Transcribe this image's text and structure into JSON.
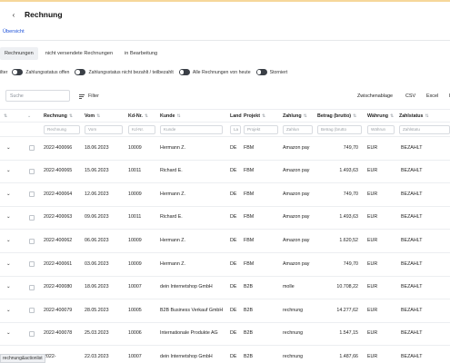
{
  "header": {
    "title": "Rechnung",
    "back_icon": "chevron-left-icon"
  },
  "breadcrumb": {
    "label": "Übersicht"
  },
  "tabs": [
    {
      "label": "Rechnungen",
      "active": true
    },
    {
      "label": "nicht versendete Rechnungen",
      "active": false
    },
    {
      "label": "in Bearbeitung",
      "active": false
    }
  ],
  "filters": {
    "label": "ilter",
    "chips": [
      {
        "label": "Zahlungsstatus offen"
      },
      {
        "label": "Zahlungsstatus nicht bezahlt / teilbezahlt"
      },
      {
        "label": "Alle Rechnungen von heute"
      },
      {
        "label": "Storniert"
      }
    ]
  },
  "toolbar": {
    "search_placeholder": "Suche",
    "filter_label": "Filter",
    "export": [
      "Zwischenablage",
      "CSV",
      "Excel",
      "I"
    ]
  },
  "table": {
    "columns": [
      "",
      "",
      "Rechnung",
      "Vom",
      "Kd-Nr.",
      "Kunde",
      "Land",
      "Projekt",
      "Zahlung",
      "Betrag (brutto)",
      "Währung",
      "Zahlstatus"
    ],
    "filter_placeholders": [
      "",
      "",
      "Rechnung",
      "Vom",
      "Kd-Nr.",
      "Kunde",
      "La",
      "Projekt",
      "Zahlun",
      "Betrag (brutto",
      "Währun",
      "Zahlstatu"
    ],
    "rows": [
      {
        "rechnung": "2022-400066",
        "vom": "18.06.2023",
        "kdnr": "10009",
        "kunde": "Hermann Z.",
        "land": "DE",
        "projekt": "FBM",
        "zahlung": "Amazon pay",
        "betrag": "749,70",
        "waehrung": "EUR",
        "status": "BEZAHLT"
      },
      {
        "rechnung": "2022-400065",
        "vom": "15.06.2023",
        "kdnr": "10011",
        "kunde": "Richard E.",
        "land": "DE",
        "projekt": "FBM",
        "zahlung": "Amazon pay",
        "betrag": "1.493,63",
        "waehrung": "EUR",
        "status": "BEZAHLT"
      },
      {
        "rechnung": "2022-400064",
        "vom": "12.06.2023",
        "kdnr": "10009",
        "kunde": "Hermann Z.",
        "land": "DE",
        "projekt": "FBM",
        "zahlung": "Amazon pay",
        "betrag": "749,70",
        "waehrung": "EUR",
        "status": "BEZAHLT"
      },
      {
        "rechnung": "2022-400063",
        "vom": "09.06.2023",
        "kdnr": "10011",
        "kunde": "Richard E.",
        "land": "DE",
        "projekt": "FBM",
        "zahlung": "Amazon pay",
        "betrag": "1.493,63",
        "waehrung": "EUR",
        "status": "BEZAHLT"
      },
      {
        "rechnung": "2022-400062",
        "vom": "06.06.2023",
        "kdnr": "10009",
        "kunde": "Hermann Z.",
        "land": "DE",
        "projekt": "FBM",
        "zahlung": "Amazon pay",
        "betrag": "1.620,52",
        "waehrung": "EUR",
        "status": "BEZAHLT"
      },
      {
        "rechnung": "2022-400061",
        "vom": "03.06.2023",
        "kdnr": "10009",
        "kunde": "Hermann Z.",
        "land": "DE",
        "projekt": "FBM",
        "zahlung": "Amazon pay",
        "betrag": "749,70",
        "waehrung": "EUR",
        "status": "BEZAHLT"
      },
      {
        "rechnung": "2022-400080",
        "vom": "18.06.2023",
        "kdnr": "10007",
        "kunde": "dein Internetshop GmbH",
        "land": "DE",
        "projekt": "B2B",
        "zahlung": "molle",
        "betrag": "10.708,22",
        "waehrung": "EUR",
        "status": "BEZAHLT"
      },
      {
        "rechnung": "2022-400079",
        "vom": "28.05.2023",
        "kdnr": "10005",
        "kunde": "B2B Business Verkauf GmbH",
        "land": "DE",
        "projekt": "B2B",
        "zahlung": "rechnung",
        "betrag": "14.277,62",
        "waehrung": "EUR",
        "status": "BEZAHLT"
      },
      {
        "rechnung": "2022-400078",
        "vom": "25.03.2023",
        "kdnr": "10006",
        "kunde": "Internationale Produkte AG",
        "land": "DE",
        "projekt": "B2B",
        "zahlung": "rechnung",
        "betrag": "1.547,15",
        "waehrung": "EUR",
        "status": "BEZAHLT"
      },
      {
        "rechnung": "2022-",
        "vom": "22.03.2023",
        "kdnr": "10007",
        "kunde": "dein Internetshop GmbH",
        "land": "DE",
        "projekt": "B2B",
        "zahlung": "rechnung",
        "betrag": "1.487,66",
        "waehrung": "EUR",
        "status": "BEZAHLT"
      }
    ]
  },
  "footer": {
    "tag": "rechnung&actionlist"
  }
}
